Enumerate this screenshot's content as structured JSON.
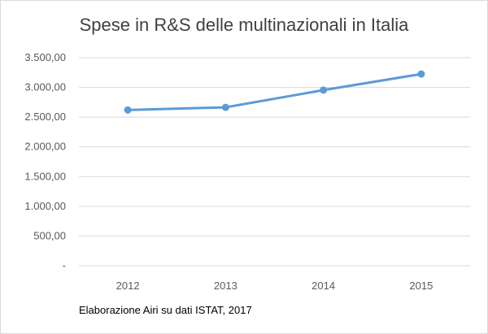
{
  "chart_data": {
    "type": "line",
    "title": "Spese in R&S delle multinazionali in Italia",
    "x": [
      "2012",
      "2013",
      "2014",
      "2015"
    ],
    "series": [
      {
        "values": [
          2620,
          2665,
          2955,
          3225
        ]
      }
    ],
    "ylim": [
      0,
      3500
    ],
    "y_ticks": [
      0,
      500,
      1000,
      1500,
      2000,
      2500,
      3000,
      3500
    ],
    "y_tick_labels": [
      "-",
      "500,00",
      "1.000,00",
      "1.500,00",
      "2.000,00",
      "2.500,00",
      "3.000,00",
      "3.500,00"
    ],
    "grid": true,
    "legend": "none",
    "line_color": "#5b9bd5",
    "grid_color": "#d9d9d9"
  },
  "note": "Elaborazione Airi su dati ISTAT, 2017"
}
